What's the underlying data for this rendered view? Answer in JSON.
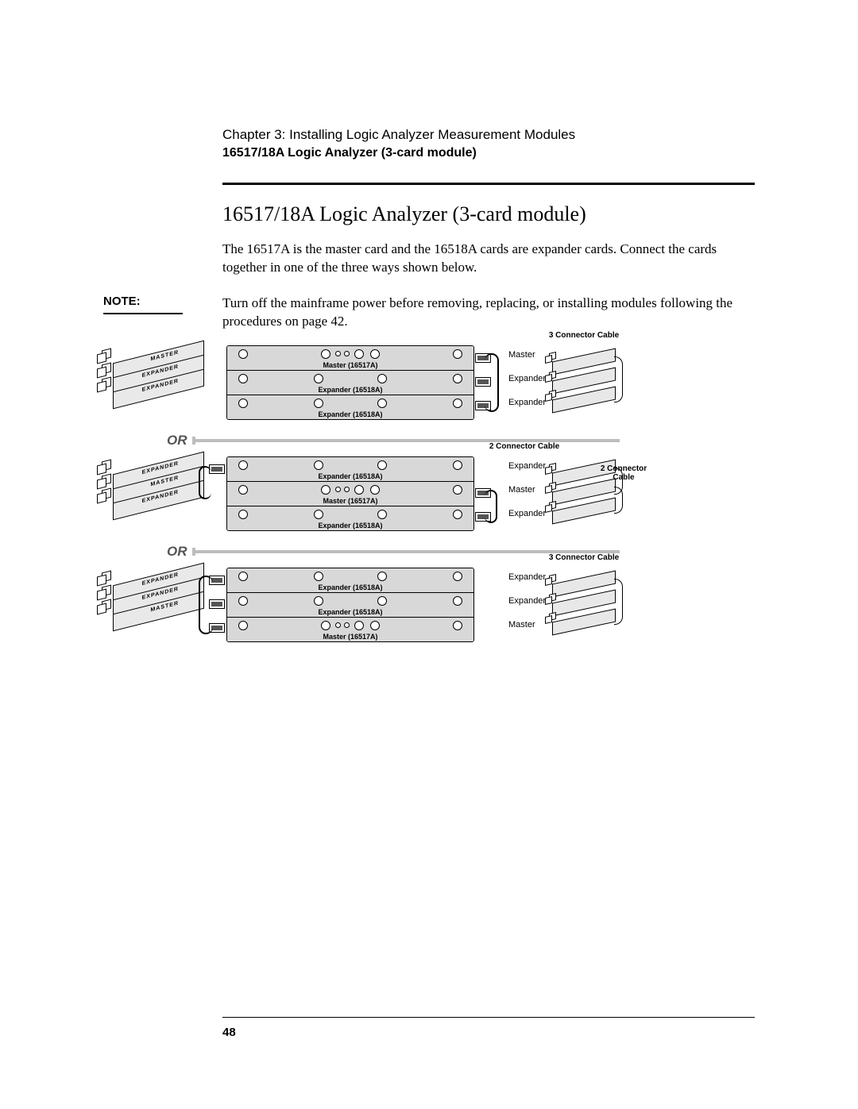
{
  "header": {
    "chapter": "Chapter 3: Installing Logic Analyzer Measurement Modules",
    "subtitle": "16517/18A Logic Analyzer (3-card module)"
  },
  "section": {
    "title": "16517/18A Logic Analyzer (3-card module)",
    "intro": "The 16517A is the master card and the 16518A cards are expander cards. Connect the cards together in one of the three ways shown below."
  },
  "note": {
    "label": "NOTE:",
    "text": "Turn off the mainframe power before removing, replacing, or installing modules following the procedures on page 42."
  },
  "or_label": "OR",
  "page_number": "48",
  "colors": {
    "panel_bg": "#d8d8d8",
    "iso_bg": "#e9e9e9",
    "or_grey": "#bdbdbd"
  },
  "diagram": {
    "configs": [
      {
        "iso_labels": [
          "MASTER",
          "EXPANDER",
          "EXPANDER"
        ],
        "panels": [
          {
            "label": "Master (16517A)",
            "is_master": true,
            "conn_side": "right"
          },
          {
            "label": "Expander (16518A)",
            "is_master": false,
            "conn_side": "right"
          },
          {
            "label": "Expander (16518A)",
            "is_master": false,
            "conn_side": "right"
          }
        ],
        "roles": [
          "Master",
          "Expander",
          "Expander"
        ],
        "cable_caption_top": "3 Connector Cable",
        "right_cable_spans": [
          [
            0,
            2
          ]
        ]
      },
      {
        "iso_labels": [
          "EXPANDER",
          "MASTER",
          "EXPANDER"
        ],
        "panels": [
          {
            "label": "Expander (16518A)",
            "is_master": false,
            "conn_side": "left"
          },
          {
            "label": "Master (16517A)",
            "is_master": true,
            "conn_side": "right"
          },
          {
            "label": "Expander (16518A)",
            "is_master": false,
            "conn_side": "right"
          }
        ],
        "roles": [
          "Expander",
          "Master",
          "Expander"
        ],
        "cable_caption_top": "2 Connector Cable",
        "cable_caption_right": "2 Connector Cable",
        "right_cable_spans": [
          [
            0,
            1
          ],
          [
            1,
            2
          ]
        ]
      },
      {
        "iso_labels": [
          "EXPANDER",
          "EXPANDER",
          "MASTER"
        ],
        "panels": [
          {
            "label": "Expander (16518A)",
            "is_master": false,
            "conn_side": "left"
          },
          {
            "label": "Expander (16518A)",
            "is_master": false,
            "conn_side": "left"
          },
          {
            "label": "Master (16517A)",
            "is_master": true,
            "conn_side": "left"
          }
        ],
        "roles": [
          "Expander",
          "Expander",
          "Master"
        ],
        "cable_caption_top": "3 Connector Cable",
        "right_cable_spans": [
          [
            0,
            2
          ]
        ]
      }
    ]
  }
}
